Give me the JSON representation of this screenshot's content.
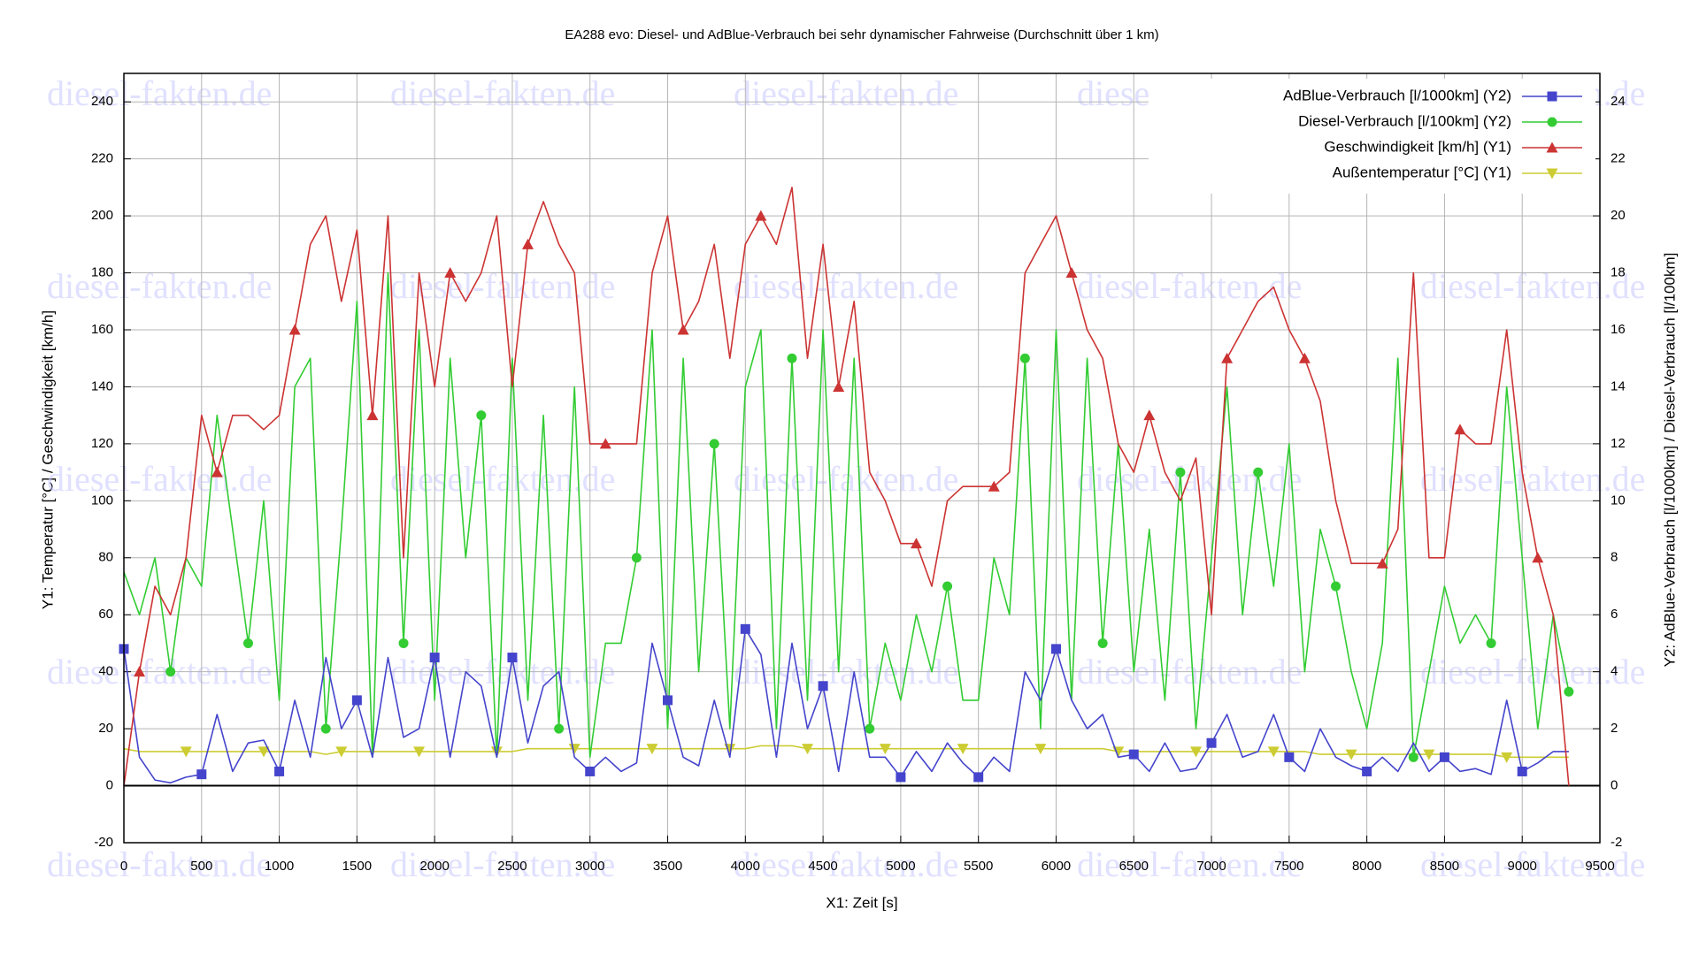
{
  "chart_data": {
    "type": "line",
    "title": "EA288 evo: Diesel- und AdBlue-Verbrauch bei sehr dynamischer Fahrweise (Durchschnitt über 1 km)",
    "watermark": "diesel-fakten.de",
    "xlabel": "X1: Zeit [s]",
    "ylabel": "Y1: Temperatur [°C] / Geschwindigkeit [km/h]",
    "y2label": "Y2: AdBlue-Verbrauch [l/1000km] / Diesel-Verbrauch [l/100km]",
    "xlim": [
      0,
      9500
    ],
    "xticks": [
      0,
      500,
      1000,
      1500,
      2000,
      2500,
      3000,
      3500,
      4000,
      4500,
      5000,
      5500,
      6000,
      6500,
      7000,
      7500,
      8000,
      8500,
      9000,
      9500
    ],
    "ylim": [
      -20,
      250
    ],
    "yticks": [
      -20,
      0,
      20,
      40,
      60,
      80,
      100,
      120,
      140,
      160,
      180,
      200,
      220,
      240
    ],
    "y2lim": [
      -2,
      25
    ],
    "y2ticks": [
      -2,
      0,
      2,
      4,
      6,
      8,
      10,
      12,
      14,
      16,
      18,
      20,
      22,
      24
    ],
    "grid": true,
    "legend": "upper right",
    "x": [
      0,
      100,
      200,
      300,
      400,
      500,
      600,
      700,
      800,
      900,
      1000,
      1100,
      1200,
      1300,
      1400,
      1500,
      1600,
      1700,
      1800,
      1900,
      2000,
      2100,
      2200,
      2300,
      2400,
      2500,
      2600,
      2700,
      2800,
      2900,
      3000,
      3100,
      3200,
      3300,
      3400,
      3500,
      3600,
      3700,
      3800,
      3900,
      4000,
      4100,
      4200,
      4300,
      4400,
      4500,
      4600,
      4700,
      4800,
      4900,
      5000,
      5100,
      5200,
      5300,
      5400,
      5500,
      5600,
      5700,
      5800,
      5900,
      6000,
      6100,
      6200,
      6300,
      6400,
      6500,
      6600,
      6700,
      6800,
      6900,
      7000,
      7100,
      7200,
      7300,
      7400,
      7500,
      7600,
      7700,
      7800,
      7900,
      8000,
      8100,
      8200,
      8300,
      8400,
      8500,
      8600,
      8700,
      8800,
      8900,
      9000,
      9100,
      9200,
      9300
    ],
    "series": [
      {
        "name": "AdBlue-Verbrauch [l/1000km] (Y2)",
        "color": "#4444cc",
        "marker": "square",
        "axis": "y2",
        "values": [
          4.8,
          1,
          0.2,
          0.1,
          0.3,
          0.4,
          2.5,
          0.5,
          1.5,
          1.6,
          0.5,
          3,
          1,
          4.5,
          2,
          3,
          1,
          4.5,
          1.7,
          2,
          4.5,
          1,
          4,
          3.5,
          1,
          4.5,
          1.5,
          3.5,
          4,
          1,
          0.5,
          1,
          0.5,
          0.8,
          5,
          3,
          1,
          0.7,
          3,
          1,
          5.5,
          4.6,
          1,
          5,
          2,
          3.5,
          0.5,
          4,
          1,
          1,
          0.3,
          1.2,
          0.5,
          1.5,
          0.8,
          0.3,
          1,
          0.5,
          4,
          3,
          4.8,
          3,
          2,
          2.5,
          1,
          1.1,
          0.5,
          1.5,
          0.5,
          0.6,
          1.5,
          2.5,
          1,
          1.2,
          2.5,
          1,
          0.5,
          2,
          1,
          0.7,
          0.5,
          1,
          0.5,
          1.5,
          0.5,
          1,
          0.5,
          0.6,
          0.4,
          3,
          0.5,
          0.8,
          1.2,
          1.2
        ]
      },
      {
        "name": "Diesel-Verbrauch [l/100km] (Y2)",
        "color": "#33cc33",
        "marker": "circle",
        "axis": "y2",
        "values": [
          7.5,
          6,
          8,
          4,
          8,
          7,
          13,
          9,
          5,
          10,
          3,
          14,
          15,
          2,
          9,
          17,
          1,
          18,
          5,
          16,
          3,
          15,
          8,
          13,
          1,
          15,
          3,
          13,
          2,
          14,
          1,
          5,
          5,
          8,
          16,
          2,
          15,
          4,
          12,
          2,
          14,
          16,
          2,
          15,
          3,
          16,
          4,
          15,
          2,
          5,
          3,
          6,
          4,
          7,
          3,
          3,
          8,
          6,
          15,
          2,
          16,
          3,
          15,
          5,
          12,
          4,
          9,
          3,
          11,
          2,
          8,
          14,
          6,
          11,
          7,
          12,
          4,
          9,
          7,
          4,
          2,
          5,
          15,
          1,
          4,
          7,
          5,
          6,
          5,
          14,
          8,
          2,
          6,
          3.3
        ]
      },
      {
        "name": "Geschwindigkeit [km/h] (Y1)",
        "color": "#cc3333",
        "marker": "triangle",
        "values": [
          0,
          40,
          70,
          60,
          80,
          130,
          110,
          130,
          130,
          125,
          130,
          160,
          190,
          200,
          170,
          195,
          130,
          200,
          80,
          180,
          140,
          180,
          170,
          180,
          200,
          140,
          190,
          205,
          190,
          180,
          120,
          120,
          120,
          120,
          180,
          200,
          160,
          170,
          190,
          150,
          190,
          200,
          190,
          210,
          150,
          190,
          140,
          170,
          110,
          100,
          85,
          85,
          70,
          100,
          105,
          105,
          105,
          110,
          180,
          190,
          200,
          180,
          160,
          150,
          120,
          110,
          130,
          110,
          100,
          115,
          60,
          150,
          160,
          170,
          175,
          160,
          150,
          135,
          100,
          78,
          78,
          78,
          90,
          180,
          80,
          80,
          125,
          120,
          120,
          160,
          110,
          80,
          60,
          0
        ]
      },
      {
        "name": "Außentemperatur [°C] (Y1)",
        "color": "#cccc33",
        "marker": "triangle-down",
        "values": [
          13,
          12,
          12,
          12,
          12,
          12,
          12,
          12,
          12,
          12,
          12,
          12,
          12,
          11,
          12,
          12,
          12,
          12,
          12,
          12,
          12,
          12,
          12,
          12,
          12,
          12,
          13,
          13,
          13,
          13,
          13,
          13,
          13,
          13,
          13,
          13,
          13,
          13,
          13,
          13,
          13,
          14,
          14,
          14,
          13,
          13,
          13,
          13,
          13,
          13,
          13,
          13,
          13,
          13,
          13,
          13,
          13,
          13,
          13,
          13,
          13,
          13,
          13,
          13,
          12,
          12,
          12,
          12,
          12,
          12,
          12,
          12,
          12,
          12,
          12,
          12,
          12,
          11,
          11,
          11,
          11,
          11,
          11,
          11,
          11,
          11,
          11,
          11,
          11,
          10,
          10,
          10,
          10,
          10
        ]
      }
    ]
  }
}
